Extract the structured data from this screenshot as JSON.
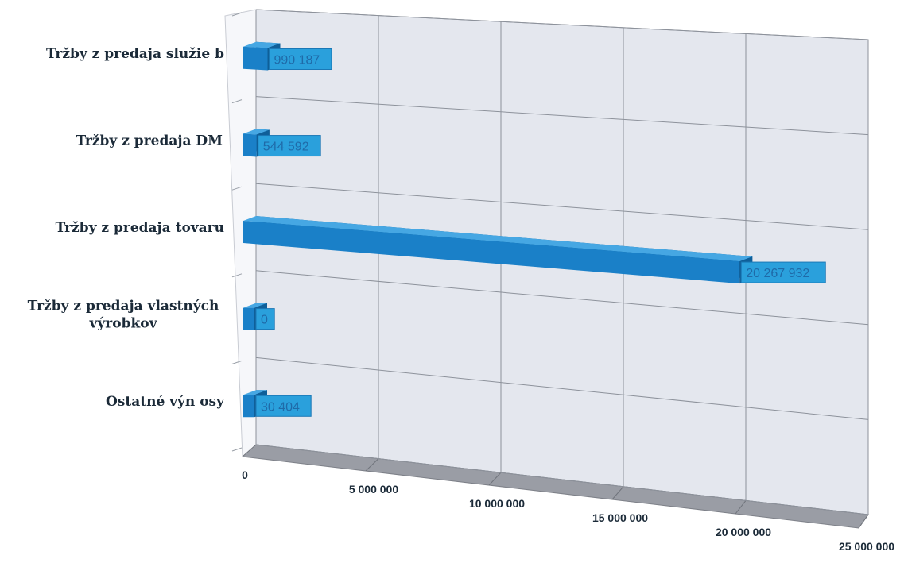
{
  "chart_data": {
    "type": "bar",
    "orientation": "horizontal",
    "style": "3d",
    "categories": [
      [
        "Tržby z predaja služie b"
      ],
      [
        "Tržby z predaja DM"
      ],
      [
        "Tržby z predaja tovaru"
      ],
      [
        "Tržby z predaja vlastných",
        "výrobkov"
      ],
      [
        "Ostatné výn osy"
      ]
    ],
    "values": [
      990187,
      544592,
      20267932,
      0,
      30404
    ],
    "data_labels": [
      "990 187",
      "544 592",
      "20 267 932",
      "0",
      "30 404"
    ],
    "xlim": [
      0,
      25000000
    ],
    "x_ticks": [
      0,
      5000000,
      10000000,
      15000000,
      20000000,
      25000000
    ],
    "x_tick_labels": [
      "0",
      "5 000 000",
      "10 000 000",
      "15 000 000",
      "20 000 000",
      "25 000 000"
    ],
    "grid": true,
    "colors": {
      "bar": "#1a80c8",
      "bar_top": "#46a7e3",
      "bar_dark": "#0f5f99",
      "data_label_bg": "#2aa0dc",
      "wall": "#e4e7ee",
      "floor": "#9a9da5",
      "grid": "#8d929b"
    }
  }
}
